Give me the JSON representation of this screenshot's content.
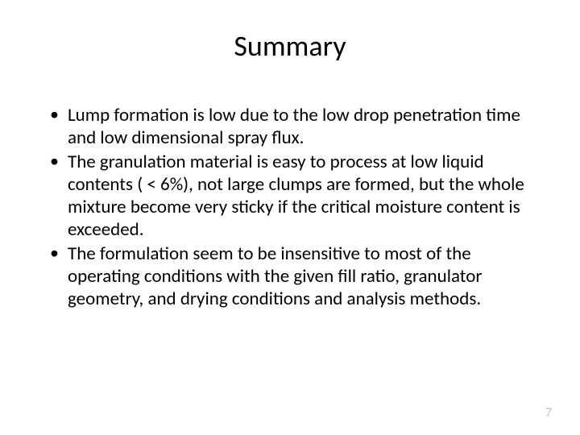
{
  "title": "Summary",
  "bullets": [
    "Lump formation is low due to the low drop penetration time and low dimensional spray flux.",
    "The granulation material is easy to process at low liquid contents ( < 6%), not large clumps are formed, but the whole mixture become very sticky if the critical moisture content is exceeded.",
    "The formulation seem to be insensitive to most of the operating conditions with the given fill ratio, granulator geometry, and drying conditions and analysis methods."
  ],
  "page_number": "7",
  "colors": {
    "background": "#ffffff",
    "text": "#000000",
    "page_number": "#bfbfbf"
  },
  "fonts": {
    "title_size": 36,
    "body_size": 23,
    "page_number_size": 16,
    "family": "Calibri"
  }
}
